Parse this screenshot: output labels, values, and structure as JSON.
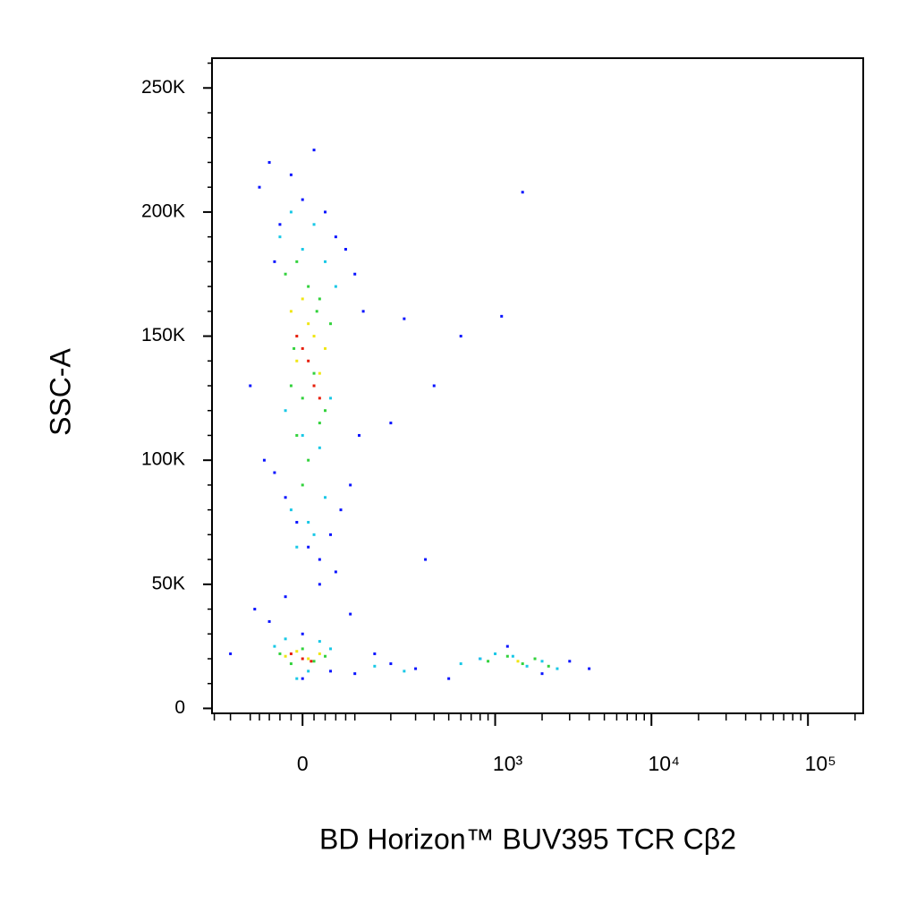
{
  "chart_data": {
    "type": "scatter",
    "xlabel": "BD Horizon™ BUV395 TCR Cβ2",
    "ylabel": "SSC-A",
    "xscale": "biexponential",
    "xlim": [
      -208,
      225500
    ],
    "ylim": [
      -2000,
      262000
    ],
    "xticks": [
      0,
      {
        "value": 1000,
        "label": "10³"
      },
      {
        "value": 10000,
        "label": "10⁴"
      },
      {
        "value": 100000,
        "label": "10⁵"
      }
    ],
    "xminorticks": [
      -200,
      -150,
      -100,
      -80,
      -60,
      -40,
      -20,
      20,
      40,
      60,
      80,
      100,
      200,
      300,
      400,
      500,
      600,
      700,
      800,
      900,
      2000,
      3000,
      4000,
      5000,
      6000,
      7000,
      8000,
      9000,
      20000,
      30000,
      40000,
      50000,
      60000,
      70000,
      80000,
      90000,
      200000
    ],
    "yticks": [
      0,
      {
        "value": 50000,
        "label": "50K"
      },
      {
        "value": 100000,
        "label": "100K"
      },
      {
        "value": 150000,
        "label": "150K"
      },
      {
        "value": 200000,
        "label": "200K"
      },
      {
        "value": 250000,
        "label": "250K"
      }
    ],
    "yminorticks": [
      10000,
      20000,
      30000,
      40000,
      60000,
      70000,
      80000,
      90000,
      110000,
      120000,
      130000,
      140000,
      160000,
      170000,
      180000,
      190000,
      210000,
      220000,
      230000,
      240000,
      260000
    ],
    "series": [
      {
        "color": "#0a14ff",
        "x": [
          -80,
          -60,
          -40,
          -20,
          0,
          20,
          40,
          60,
          80,
          100,
          -70,
          -50,
          -30,
          -10,
          10,
          30,
          50,
          70,
          90,
          110,
          -90,
          -60,
          -30,
          0,
          30,
          60,
          90,
          120,
          -100,
          -50,
          0,
          50,
          100,
          150,
          200,
          300,
          500,
          800,
          1200,
          2000,
          3000,
          4000,
          -150,
          250,
          400,
          600,
          1500,
          200,
          350,
          1100
        ],
        "y": [
          210000,
          220000,
          195000,
          215000,
          205000,
          225000,
          200000,
          190000,
          185000,
          175000,
          100000,
          95000,
          85000,
          75000,
          65000,
          60000,
          70000,
          80000,
          90000,
          110000,
          40000,
          35000,
          45000,
          30000,
          50000,
          55000,
          38000,
          160000,
          130000,
          180000,
          12000,
          15000,
          14000,
          22000,
          18000,
          16000,
          12000,
          20000,
          25000,
          14000,
          19000,
          16000,
          22000,
          157000,
          130000,
          150000,
          208000,
          115000,
          60000,
          158000
        ]
      },
      {
        "color": "#19c8e6",
        "x": [
          -40,
          -20,
          0,
          20,
          40,
          60,
          -30,
          0,
          30,
          50,
          -20,
          10,
          40,
          -10,
          20,
          -50,
          -30,
          -10,
          10,
          30,
          50,
          600,
          800,
          1000,
          1300,
          1600,
          2000,
          2500,
          150,
          250
        ],
        "y": [
          190000,
          200000,
          185000,
          195000,
          180000,
          170000,
          120000,
          110000,
          105000,
          125000,
          80000,
          75000,
          85000,
          65000,
          70000,
          25000,
          28000,
          12000,
          15000,
          27000,
          24000,
          18000,
          20000,
          22000,
          21000,
          17000,
          19000,
          16000,
          17000,
          15000
        ]
      },
      {
        "color": "#32d23c",
        "x": [
          -30,
          -10,
          10,
          30,
          50,
          -20,
          0,
          20,
          40,
          -10,
          10,
          30,
          -40,
          -20,
          0,
          20,
          40,
          900,
          1200,
          1500,
          1800,
          2200,
          0,
          25,
          -15
        ],
        "y": [
          175000,
          180000,
          170000,
          165000,
          155000,
          130000,
          125000,
          135000,
          120000,
          110000,
          100000,
          115000,
          22000,
          18000,
          24000,
          19000,
          21000,
          19000,
          21000,
          18000,
          20000,
          17000,
          90000,
          160000,
          145000
        ]
      },
      {
        "color": "#f0e614",
        "x": [
          -20,
          0,
          20,
          40,
          -10,
          10,
          30,
          -30,
          -10,
          10,
          30,
          1400
        ],
        "y": [
          160000,
          165000,
          150000,
          145000,
          140000,
          155000,
          135000,
          21000,
          23000,
          20000,
          22000,
          19000
        ]
      },
      {
        "color": "#e61e0a",
        "x": [
          -10,
          10,
          20,
          0,
          30,
          -20,
          0,
          15
        ],
        "y": [
          150000,
          140000,
          130000,
          145000,
          125000,
          22000,
          20000,
          19000
        ]
      }
    ]
  }
}
